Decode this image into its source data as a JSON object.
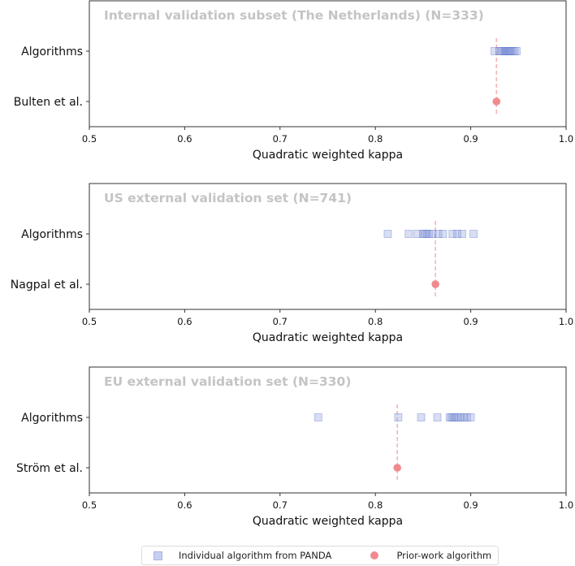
{
  "chart_data": [
    {
      "type": "scatter",
      "title": "Internal validation subset (The Netherlands) (N=333)",
      "xlabel": "Quadratic weighted kappa",
      "ylabel": "",
      "xlim": [
        0.5,
        1.0
      ],
      "xticks": [
        "0.5",
        "0.6",
        "0.7",
        "0.8",
        "0.9",
        "1.0"
      ],
      "categories": [
        "Algorithms",
        "Bulten et al."
      ],
      "series": [
        {
          "name": "Individual algorithm from PANDA",
          "category": "Algorithms",
          "values": [
            0.925,
            0.93,
            0.932,
            0.934,
            0.936,
            0.937,
            0.938,
            0.939,
            0.94,
            0.941,
            0.942,
            0.944,
            0.946,
            0.948
          ]
        },
        {
          "name": "Prior-work algorithm",
          "category": "Bulten et al.",
          "values": [
            0.927
          ]
        }
      ],
      "reference_line": 0.927
    },
    {
      "type": "scatter",
      "title": "US external validation set (N=741)",
      "xlabel": "Quadratic weighted kappa",
      "ylabel": "",
      "xlim": [
        0.5,
        1.0
      ],
      "xticks": [
        "0.5",
        "0.6",
        "0.7",
        "0.8",
        "0.9",
        "1.0"
      ],
      "categories": [
        "Algorithms",
        "Nagpal et al."
      ],
      "series": [
        {
          "name": "Individual algorithm from PANDA",
          "category": "Algorithms",
          "values": [
            0.813,
            0.835,
            0.844,
            0.85,
            0.852,
            0.854,
            0.856,
            0.86,
            0.866,
            0.871,
            0.881,
            0.886,
            0.891,
            0.903
          ]
        },
        {
          "name": "Prior-work algorithm",
          "category": "Nagpal et al.",
          "values": [
            0.863
          ]
        }
      ],
      "reference_line": 0.863
    },
    {
      "type": "scatter",
      "title": "EU external validation set (N=330)",
      "xlabel": "Quadratic weighted kappa",
      "ylabel": "",
      "xlim": [
        0.5,
        1.0
      ],
      "xticks": [
        "0.5",
        "0.6",
        "0.7",
        "0.8",
        "0.9",
        "1.0"
      ],
      "categories": [
        "Algorithms",
        "Ström et al."
      ],
      "series": [
        {
          "name": "Individual algorithm from PANDA",
          "category": "Algorithms",
          "values": [
            0.74,
            0.824,
            0.848,
            0.865,
            0.878,
            0.88,
            0.882,
            0.884,
            0.887,
            0.89,
            0.893,
            0.896,
            0.9
          ]
        },
        {
          "name": "Prior-work algorithm",
          "category": "Ström et al.",
          "values": [
            0.823
          ]
        }
      ],
      "reference_line": 0.823
    }
  ],
  "legend": {
    "items": [
      {
        "label": "Individual algorithm from PANDA",
        "marker": "square",
        "color": "#c8cff0"
      },
      {
        "label": "Prior-work algorithm",
        "marker": "circle",
        "color": "#f08a8e"
      }
    ]
  },
  "colors": {
    "algorithm_fill": "#8fa0dc",
    "algorithm_edge": "#5a72c8",
    "prior_work": "#f08a8e",
    "reference_line": "#f5b5b7",
    "title_text": "#c4c4c4"
  }
}
